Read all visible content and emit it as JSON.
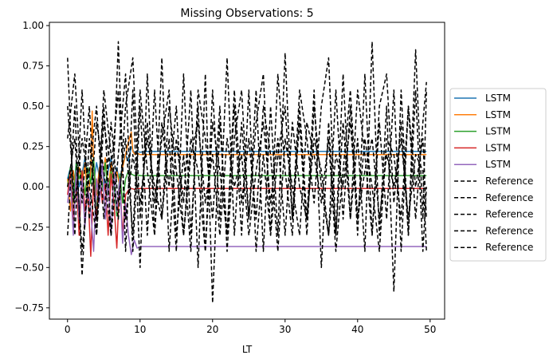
{
  "chart_data": {
    "type": "line",
    "title": "Missing Observations: 5",
    "xlabel": "LT",
    "ylabel": "",
    "xlim": [
      -2.5,
      52.0
    ],
    "ylim": [
      -0.82,
      1.02
    ],
    "xticks": [
      0,
      10,
      20,
      30,
      40,
      50
    ],
    "yticks": [
      -0.75,
      -0.5,
      -0.25,
      0.0,
      0.25,
      0.5,
      0.75,
      1.0
    ],
    "ytick_labels": [
      "−0.75",
      "−0.50",
      "−0.25",
      "0.00",
      "0.25",
      "0.50",
      "0.75",
      "1.00"
    ],
    "grid": false,
    "legend_position": "outside-right",
    "series": [
      {
        "name": "LSTM",
        "color": "#1f77b4",
        "dash": "solid",
        "x": [
          0,
          0.4,
          0.8,
          1.2,
          1.6,
          2,
          2.4,
          2.8,
          3.2,
          3.6,
          4,
          4.4,
          4.8,
          5.2,
          5.6,
          6,
          6.4,
          6.8,
          7.2,
          7.6,
          8,
          8.4,
          8.8,
          9.2,
          9.6,
          10,
          11,
          12,
          14,
          16,
          20,
          25,
          30,
          35,
          40,
          45,
          49.5
        ],
        "y": [
          0.05,
          0.12,
          -0.05,
          0.15,
          0.0,
          0.08,
          0.18,
          0.05,
          0.12,
          0.02,
          0.15,
          0.06,
          0.14,
          0.0,
          0.1,
          0.18,
          0.05,
          0.12,
          0.02,
          0.15,
          0.2,
          0.16,
          0.25,
          0.21,
          0.22,
          0.215,
          0.22,
          0.22,
          0.22,
          0.22,
          0.22,
          0.22,
          0.22,
          0.22,
          0.22,
          0.22,
          0.22
        ]
      },
      {
        "name": "LSTM",
        "color": "#ff7f0e",
        "dash": "solid",
        "x": [
          0,
          0.4,
          0.8,
          1.2,
          1.6,
          2,
          2.4,
          2.8,
          3.2,
          3.4,
          3.6,
          4,
          4.4,
          4.8,
          5.2,
          5.6,
          6,
          6.4,
          6.8,
          7.2,
          7.6,
          8,
          8.4,
          8.8,
          9,
          9.3,
          9.6,
          10,
          11,
          12,
          14,
          16,
          20,
          25,
          30,
          35,
          40,
          45,
          49.5
        ],
        "y": [
          0.05,
          -0.15,
          0.1,
          -0.05,
          0.12,
          0.0,
          0.15,
          -0.1,
          0.1,
          0.47,
          0.15,
          -0.05,
          0.12,
          0.02,
          0.18,
          -0.02,
          0.15,
          0.05,
          0.1,
          0.0,
          0.12,
          0.2,
          0.28,
          0.34,
          0.22,
          0.2,
          0.21,
          0.2,
          0.2,
          0.2,
          0.2,
          0.2,
          0.2,
          0.2,
          0.2,
          0.2,
          0.2,
          0.2,
          0.2
        ]
      },
      {
        "name": "LSTM",
        "color": "#2ca02c",
        "dash": "solid",
        "x": [
          0,
          0.4,
          0.8,
          1.2,
          1.6,
          2,
          2.4,
          2.8,
          3.2,
          3.6,
          4,
          4.4,
          4.8,
          5.2,
          5.6,
          6,
          6.4,
          6.8,
          7.2,
          7.6,
          8,
          8.4,
          8.8,
          9.2,
          9.6,
          10,
          11,
          12,
          14,
          16,
          20,
          25,
          30,
          35,
          40,
          45,
          49.5
        ],
        "y": [
          0.0,
          0.12,
          -0.1,
          0.15,
          0.05,
          0.1,
          -0.05,
          0.12,
          0.02,
          0.18,
          -0.15,
          0.1,
          0.0,
          0.15,
          -0.05,
          0.1,
          0.02,
          -0.18,
          0.08,
          -0.1,
          0.05,
          0.1,
          0.08,
          0.07,
          0.075,
          0.07,
          0.07,
          0.07,
          0.07,
          0.07,
          0.07,
          0.07,
          0.07,
          0.07,
          0.07,
          0.07,
          0.07
        ]
      },
      {
        "name": "LSTM",
        "color": "#d62728",
        "dash": "solid",
        "x": [
          0,
          0.4,
          0.8,
          1.2,
          1.6,
          2,
          2.4,
          2.8,
          3.2,
          3.6,
          4,
          4.4,
          4.8,
          5.2,
          5.6,
          6,
          6.4,
          6.8,
          7.2,
          7.6,
          8,
          8.4,
          8.8,
          9.2,
          9.6,
          10,
          11,
          12,
          14,
          16,
          20,
          25,
          30,
          35,
          40,
          45,
          49.5
        ],
        "y": [
          -0.05,
          0.1,
          -0.2,
          0.05,
          -0.3,
          0.1,
          -0.15,
          0.0,
          -0.43,
          0.05,
          -0.2,
          0.1,
          -0.1,
          0.02,
          -0.3,
          0.08,
          -0.1,
          -0.38,
          0.05,
          -0.3,
          -0.05,
          -0.02,
          -0.01,
          -0.015,
          -0.01,
          -0.01,
          -0.01,
          -0.01,
          -0.01,
          -0.01,
          -0.01,
          -0.01,
          -0.01,
          -0.01,
          -0.01,
          -0.01,
          -0.01
        ]
      },
      {
        "name": "LSTM",
        "color": "#9467bd",
        "dash": "solid",
        "x": [
          0,
          0.4,
          0.8,
          1.2,
          1.6,
          2,
          2.4,
          2.8,
          3.2,
          3.6,
          4,
          4.4,
          4.8,
          5.2,
          5.6,
          6,
          6.4,
          6.8,
          7.2,
          7.6,
          8,
          8.4,
          8.8,
          9.2,
          9.6,
          10,
          11,
          12,
          14,
          16,
          20,
          25,
          30,
          35,
          40,
          45,
          49.5
        ],
        "y": [
          -0.1,
          0.05,
          -0.3,
          0.1,
          -0.2,
          0.05,
          -0.25,
          0.0,
          -0.15,
          -0.4,
          0.05,
          -0.1,
          0.15,
          -0.2,
          0.05,
          -0.3,
          0.1,
          -0.15,
          0.05,
          -0.35,
          -0.1,
          -0.3,
          -0.42,
          -0.33,
          -0.38,
          -0.37,
          -0.37,
          -0.37,
          -0.37,
          -0.37,
          -0.37,
          -0.37,
          -0.37,
          -0.37,
          -0.37,
          -0.37,
          -0.37
        ]
      },
      {
        "name": "Reference",
        "color": "#000000",
        "dash": "dashed",
        "x": [
          0,
          1,
          2,
          3,
          4,
          5,
          6,
          7,
          8,
          9,
          10,
          11,
          12,
          13,
          14,
          15,
          16,
          17,
          18,
          19,
          20,
          21,
          22,
          23,
          24,
          25,
          26,
          27,
          28,
          29,
          30,
          31,
          32,
          33,
          34,
          35,
          36,
          37,
          38,
          39,
          40,
          41,
          42,
          43,
          44,
          45,
          46,
          47,
          48,
          49,
          49.5
        ],
        "y": [
          0.8,
          -0.3,
          0.6,
          -0.2,
          0.4,
          0.1,
          -0.3,
          0.9,
          -0.4,
          0.6,
          -0.5,
          0.7,
          -0.3,
          0.8,
          -0.4,
          0.3,
          -0.1,
          0.6,
          -0.5,
          0.7,
          -0.72,
          0.4,
          -0.3,
          0.5,
          -0.3,
          0.6,
          -0.4,
          0.2,
          -0.3,
          0.7,
          0.1,
          -0.3,
          0.5,
          -0.2,
          0.6,
          -0.5,
          0.4,
          -0.3,
          0.7,
          -0.2,
          0.3,
          -0.4,
          0.9,
          -0.3,
          0.5,
          -0.65,
          0.6,
          -0.3,
          0.85,
          -0.2,
          0.6
        ]
      },
      {
        "name": "Reference",
        "color": "#000000",
        "dash": "dashed",
        "x": [
          0,
          1,
          2,
          3,
          4,
          5,
          6,
          7,
          8,
          9,
          10,
          11,
          12,
          13,
          14,
          15,
          16,
          17,
          18,
          19,
          20,
          21,
          22,
          23,
          24,
          25,
          26,
          27,
          28,
          29,
          30,
          31,
          32,
          33,
          34,
          35,
          36,
          37,
          38,
          39,
          40,
          41,
          42,
          43,
          44,
          45,
          46,
          47,
          48,
          49,
          49.5
        ],
        "y": [
          -0.3,
          0.5,
          -0.55,
          0.3,
          -0.2,
          0.5,
          -0.3,
          0.2,
          0.7,
          -0.4,
          0.5,
          -0.3,
          0.6,
          -0.2,
          0.3,
          -0.4,
          0.7,
          -0.3,
          0.5,
          -0.4,
          0.6,
          -0.2,
          0.8,
          -0.3,
          0.4,
          -0.2,
          0.6,
          -0.4,
          0.5,
          -0.3,
          0.83,
          -0.2,
          0.4,
          -0.3,
          0.5,
          0.0,
          -0.3,
          0.6,
          -0.2,
          0.5,
          -0.3,
          0.7,
          -0.3,
          0.4,
          -0.2,
          0.6,
          -0.4,
          0.5,
          -0.2,
          0.4,
          0.65
        ]
      },
      {
        "name": "Reference",
        "color": "#000000",
        "dash": "dashed",
        "x": [
          0,
          1,
          2,
          3,
          4,
          5,
          6,
          7,
          8,
          9,
          10,
          11,
          12,
          13,
          14,
          15,
          16,
          17,
          18,
          19,
          20,
          21,
          22,
          23,
          24,
          25,
          26,
          27,
          28,
          29,
          30,
          31,
          32,
          33,
          34,
          35,
          36,
          37,
          38,
          39,
          40,
          41,
          42,
          43,
          44,
          45,
          46,
          47,
          48,
          49,
          49.5
        ],
        "y": [
          0.3,
          0.7,
          -0.1,
          0.5,
          -0.3,
          0.6,
          0.2,
          -0.2,
          0.5,
          0.8,
          -0.2,
          0.4,
          -0.1,
          0.3,
          0.6,
          -0.3,
          0.2,
          -0.4,
          0.6,
          0.3,
          -0.2,
          0.5,
          -0.4,
          0.3,
          0.6,
          -0.2,
          0.4,
          0.7,
          -0.3,
          0.2,
          0.5,
          -0.2,
          0.6,
          0.3,
          -0.1,
          0.5,
          0.8,
          -0.3,
          0.4,
          -0.2,
          0.6,
          0.2,
          -0.3,
          0.5,
          0.7,
          -0.1,
          0.4,
          -0.3,
          0.6,
          -0.4,
          0.0
        ]
      },
      {
        "name": "Reference",
        "color": "#000000",
        "dash": "dashed",
        "x": [
          0,
          1,
          2,
          3,
          4,
          5,
          6,
          7,
          8,
          9,
          10,
          11,
          12,
          13,
          14,
          15,
          16,
          17,
          18,
          19,
          20,
          21,
          22,
          23,
          24,
          25,
          26,
          27,
          28,
          29,
          30,
          31,
          32,
          33,
          34,
          35,
          36,
          37,
          38,
          39,
          40,
          41,
          42,
          43,
          44,
          45,
          46,
          47,
          48,
          49,
          49.5
        ],
        "y": [
          0.0,
          0.3,
          -0.4,
          0.1,
          0.5,
          -0.2,
          0.4,
          -0.1,
          0.3,
          -0.3,
          0.6,
          0.1,
          -0.3,
          0.4,
          0.0,
          0.5,
          -0.3,
          0.3,
          0.1,
          -0.4,
          0.4,
          0.1,
          -0.3,
          0.6,
          -0.1,
          0.3,
          -0.2,
          0.5,
          0.2,
          -0.4,
          0.3,
          0.0,
          -0.3,
          0.4,
          0.2,
          -0.1,
          0.3,
          -0.4,
          0.1,
          0.6,
          -0.2,
          0.3,
          0.0,
          -0.4,
          0.3,
          0.2,
          -0.2,
          0.5,
          0.0,
          0.3,
          -0.2
        ]
      },
      {
        "name": "Reference",
        "color": "#000000",
        "dash": "dashed",
        "x": [
          0,
          1,
          2,
          3,
          4,
          5,
          6,
          7,
          8,
          9,
          10,
          11,
          12,
          13,
          14,
          15,
          16,
          17,
          18,
          19,
          20,
          21,
          22,
          23,
          24,
          25,
          26,
          27,
          28,
          29,
          30,
          31,
          32,
          33,
          34,
          35,
          36,
          37,
          38,
          39,
          40,
          41,
          42,
          43,
          44,
          45,
          46,
          47,
          48,
          49,
          49.5
        ],
        "y": [
          0.5,
          -0.1,
          0.3,
          0.0,
          -0.3,
          0.4,
          0.1,
          0.6,
          -0.2,
          0.2,
          -0.1,
          0.3,
          0.0,
          -0.2,
          0.5,
          0.1,
          -0.3,
          0.2,
          0.4,
          -0.1,
          0.2,
          -0.3,
          0.3,
          0.0,
          0.2,
          -0.3,
          0.1,
          0.4,
          -0.1,
          0.3,
          -0.3,
          0.4,
          0.0,
          -0.2,
          0.3,
          0.1,
          -0.3,
          0.2,
          0.0,
          0.4,
          -0.2,
          0.1,
          0.3,
          -0.2,
          0.2,
          0.0,
          0.3,
          -0.2,
          0.2,
          0.1,
          -0.4
        ]
      }
    ]
  }
}
